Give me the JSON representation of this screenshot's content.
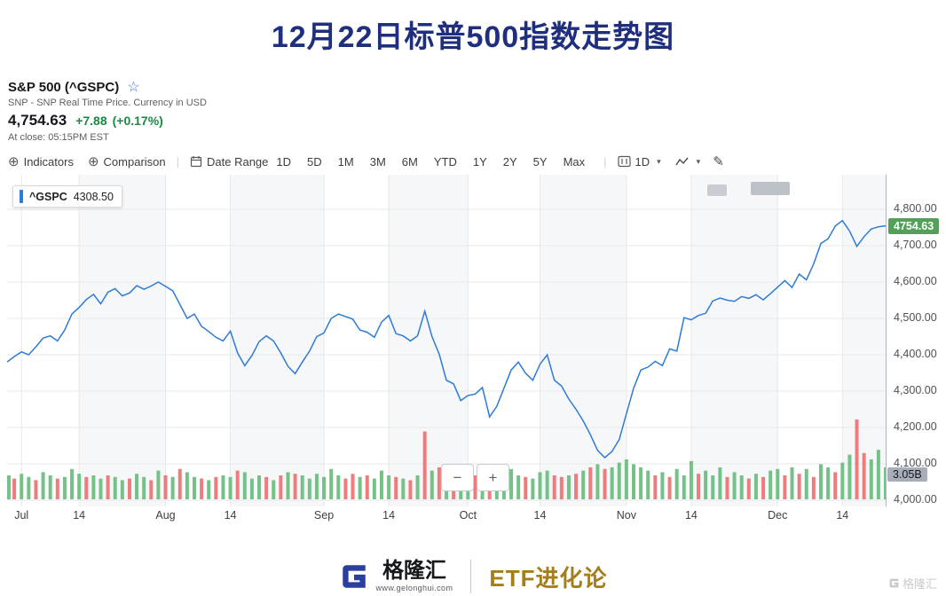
{
  "page": {
    "title": "12月22日标普500指数走势图"
  },
  "colors": {
    "title_blue": "#1f2e7d",
    "up_green": "#1a8a43",
    "price_tag_green": "#53a158",
    "line_blue": "#2e7bd4",
    "brand_gold": "#a57e1c",
    "tag_gray": "#a7aeb8"
  },
  "quote": {
    "symbol_line": "S&P 500 (^GSPC)",
    "star": "☆",
    "subtitle": "SNP - SNP Real Time Price. Currency in USD",
    "price": "4,754.63",
    "change": "+7.88",
    "change_pct": "(+0.17%)",
    "close_note": "At close: 05:15PM EST"
  },
  "toolbar": {
    "indicators": "Indicators",
    "comparison": "Comparison",
    "date_range": "Date Range",
    "ranges": [
      "1D",
      "5D",
      "1M",
      "3M",
      "6M",
      "YTD",
      "1Y",
      "2Y",
      "5Y",
      "Max"
    ],
    "interval": "1D",
    "caret": "▾",
    "pencil": "✎",
    "plus_icon": "⊕"
  },
  "chart_overlays": {
    "legend_symbol": "^GSPC",
    "legend_value": "4308.50",
    "last_price_tag": "4754.63",
    "volume_tag": "3.05B",
    "zoom_out": "−",
    "zoom_in": "+"
  },
  "chart_data": {
    "type": "line",
    "title": "S&P 500 (^GSPC) daily close with volume, Jul – Dec 22",
    "line_color": "#2e7bd4",
    "vol_up_color": "#74c287",
    "vol_down_color": "#ef7c7c",
    "grid_color": "#e6e8ea",
    "band_color": "#f6f7f8",
    "ylim": [
      3983,
      4895
    ],
    "y_ticks": [
      "4,800.00",
      "4,700.00",
      "4,600.00",
      "4,500.00",
      "4,400.00",
      "4,300.00",
      "4,200.00",
      "4,100.00",
      "4,000.00"
    ],
    "y_tick_values": [
      4800,
      4700,
      4600,
      4500,
      4400,
      4300,
      4200,
      4100,
      4000
    ],
    "x_ticks": [
      {
        "label": "Jul",
        "i": 2
      },
      {
        "label": "14",
        "i": 10
      },
      {
        "label": "Aug",
        "i": 22
      },
      {
        "label": "14",
        "i": 31
      },
      {
        "label": "Sep",
        "i": 44
      },
      {
        "label": "14",
        "i": 53
      },
      {
        "label": "Oct",
        "i": 64
      },
      {
        "label": "14",
        "i": 74
      },
      {
        "label": "Nov",
        "i": 86
      },
      {
        "label": "14",
        "i": 95
      },
      {
        "label": "Dec",
        "i": 107
      },
      {
        "label": "14",
        "i": 116
      }
    ],
    "prices": [
      4380,
      4395,
      4408,
      4400,
      4422,
      4446,
      4452,
      4438,
      4468,
      4512,
      4530,
      4552,
      4566,
      4540,
      4572,
      4582,
      4562,
      4570,
      4590,
      4580,
      4589,
      4600,
      4588,
      4576,
      4538,
      4500,
      4512,
      4478,
      4464,
      4448,
      4438,
      4465,
      4405,
      4370,
      4398,
      4436,
      4452,
      4438,
      4405,
      4368,
      4348,
      4380,
      4410,
      4450,
      4460,
      4500,
      4512,
      4505,
      4498,
      4468,
      4462,
      4448,
      4490,
      4508,
      4458,
      4452,
      4438,
      4452,
      4520,
      4450,
      4402,
      4330,
      4320,
      4274,
      4288,
      4292,
      4310,
      4229,
      4258,
      4308,
      4358,
      4380,
      4349,
      4330,
      4374,
      4400,
      4330,
      4314,
      4278,
      4250,
      4218,
      4180,
      4137,
      4117,
      4134,
      4167,
      4238,
      4308,
      4358,
      4366,
      4382,
      4370,
      4416,
      4410,
      4502,
      4496,
      4508,
      4514,
      4548,
      4556,
      4550,
      4547,
      4560,
      4555,
      4565,
      4551,
      4568,
      4586,
      4604,
      4585,
      4622,
      4606,
      4650,
      4706,
      4719,
      4754,
      4769,
      4740,
      4698,
      4725,
      4746,
      4752,
      4754.63
    ],
    "volumes": [
      30,
      -26,
      32,
      28,
      -24,
      34,
      30,
      -26,
      28,
      38,
      32,
      -28,
      30,
      26,
      -30,
      28,
      24,
      -26,
      32,
      28,
      -24,
      36,
      -30,
      28,
      -38,
      34,
      28,
      -26,
      24,
      -28,
      30,
      28,
      -36,
      34,
      26,
      30,
      -28,
      24,
      -30,
      34,
      -32,
      30,
      26,
      32,
      28,
      38,
      30,
      -26,
      -32,
      28,
      -30,
      26,
      36,
      30,
      -28,
      26,
      -24,
      30,
      -85,
      36,
      -40,
      44,
      -38,
      34,
      30,
      -30,
      32,
      -42,
      30,
      36,
      38,
      30,
      -28,
      26,
      34,
      36,
      -30,
      -28,
      30,
      -32,
      36,
      -40,
      44,
      -38,
      40,
      46,
      50,
      44,
      40,
      36,
      -30,
      34,
      -28,
      38,
      30,
      48,
      -32,
      36,
      30,
      40,
      -28,
      34,
      30,
      -26,
      32,
      -28,
      36,
      38,
      -30,
      40,
      -32,
      38,
      -28,
      44,
      40,
      -34,
      46,
      56,
      -100,
      -58,
      50,
      62,
      40
    ]
  },
  "footer": {
    "brand": "格隆汇",
    "brand_url": "www.gelonghui.com",
    "channel": "ETF进化论",
    "watermark": "格隆汇"
  }
}
